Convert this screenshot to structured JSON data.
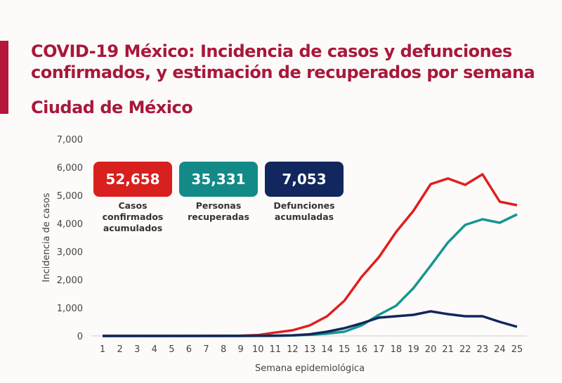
{
  "header": {
    "title_line1": "COVID-19 México: Incidencia de casos y defunciones",
    "title_line2": "confirmados, y estimación de recuperados por semana",
    "subtitle": "Ciudad de México"
  },
  "badges": [
    {
      "value": "52,658",
      "label1": "Casos",
      "label2": "confirmados",
      "label3": "acumulados",
      "color": "#d8201f"
    },
    {
      "value": "35,331",
      "label1": "Personas",
      "label2": "recuperadas",
      "label3": "",
      "color": "#138a87"
    },
    {
      "value": "7,053",
      "label1": "Defunciones",
      "label2": "acumuladas",
      "label3": "",
      "color": "#12275e"
    }
  ],
  "chart_data": {
    "type": "line",
    "xlabel": "Semana epidemiológica",
    "ylabel": "Incidencia de casos",
    "ylim": [
      0,
      7000
    ],
    "yticks": [
      "0",
      "1,000",
      "2,000",
      "3,000",
      "4,000",
      "5,000",
      "6,000",
      "7,000"
    ],
    "x": [
      1,
      2,
      3,
      4,
      5,
      6,
      7,
      8,
      9,
      10,
      11,
      12,
      13,
      14,
      15,
      16,
      17,
      18,
      19,
      20,
      21,
      22,
      23,
      24,
      25
    ],
    "series": [
      {
        "name": "Casos confirmados",
        "color": "#e01e1e",
        "values": [
          0,
          0,
          0,
          0,
          0,
          0,
          2,
          5,
          10,
          30,
          120,
          200,
          375,
          700,
          1250,
          2100,
          2800,
          3700,
          4450,
          5400,
          5600,
          5375,
          5750,
          4775,
          4650
        ]
      },
      {
        "name": "Personas recuperadas",
        "color": "#179592",
        "values": [
          0,
          0,
          0,
          0,
          0,
          0,
          0,
          0,
          2,
          5,
          10,
          20,
          40,
          80,
          150,
          375,
          750,
          1075,
          1700,
          2500,
          3325,
          3950,
          4150,
          4025,
          4325
        ]
      },
      {
        "name": "Defunciones",
        "color": "#12275e",
        "values": [
          0,
          0,
          0,
          0,
          0,
          0,
          0,
          0,
          1,
          2,
          5,
          20,
          60,
          150,
          275,
          450,
          650,
          700,
          750,
          875,
          775,
          700,
          700,
          500,
          325
        ]
      }
    ]
  }
}
